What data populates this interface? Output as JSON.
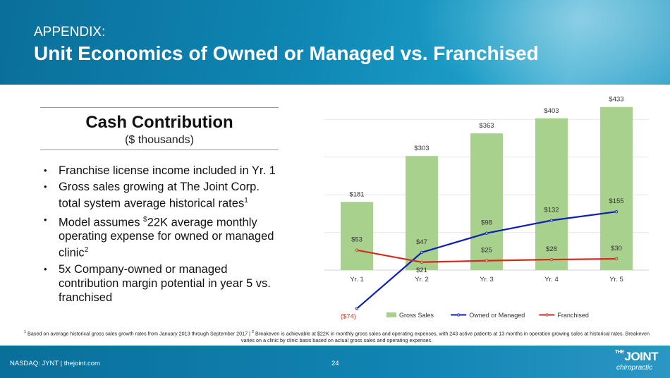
{
  "header": {
    "pretitle": "APPENDIX:",
    "title": "Unit Economics of Owned or Managed vs. Franchised"
  },
  "panel": {
    "title": "Cash Contribution",
    "subtitle": "($ thousands)"
  },
  "bullets": [
    {
      "text": "Franchise license income included in Yr. 1",
      "sup": ""
    },
    {
      "text": "Gross sales growing at The Joint Corp. total system average historical rates",
      "sup": "1"
    },
    {
      "pre": "Model assumes ",
      "presup": "$",
      "text": "22K average monthly operating expense for owned or managed clinic",
      "sup": "2"
    },
    {
      "text": "5x Company-owned or managed contribution margin potential in year 5 vs. franchised",
      "sup": ""
    }
  ],
  "chart_data": {
    "type": "bar",
    "categories": [
      "Yr. 1",
      "Yr. 2",
      "Yr. 3",
      "Yr. 4",
      "Yr. 5"
    ],
    "series": [
      {
        "name": "Gross Sales",
        "kind": "bar",
        "color": "#a9d18e",
        "values": [
          181,
          303,
          363,
          403,
          433
        ],
        "labels": [
          "$181",
          "$303",
          "$363",
          "$403",
          "$433"
        ]
      },
      {
        "name": "Owned or Managed",
        "kind": "line",
        "color": "#0d1fb8",
        "values": [
          -74,
          47,
          98,
          132,
          155
        ],
        "labels": [
          "($74)",
          "$47",
          "$98",
          "$132",
          "$155"
        ]
      },
      {
        "name": "Franchised",
        "kind": "line",
        "color": "#d42a1c",
        "values": [
          53,
          21,
          25,
          28,
          30
        ],
        "labels": [
          "$53",
          "$21",
          "$25",
          "$28",
          "$30"
        ]
      }
    ],
    "ylim": [
      -80,
      440
    ],
    "grid": true,
    "legend": "bottom"
  },
  "footnote": {
    "sup1": "1",
    "text1": " Based on average historical gross sales growth rates from January 2013 through September 2017   |   ",
    "sup2": "2",
    "text2": " Breakeven is achievable at $22K in monthly gross sales and operating expenses, with 243 active patients at 13 months in operation growing sales at historical rates.  Breakeven varies on a clinic by clinic basis based on actual gross sales and operating expenses."
  },
  "footer": {
    "left": "NASDAQ: JYNT   |  thejoint.com",
    "page": "24",
    "logo_top_small": "THE",
    "logo_top": "JOINT",
    "logo_bottom": "chiropractic"
  }
}
